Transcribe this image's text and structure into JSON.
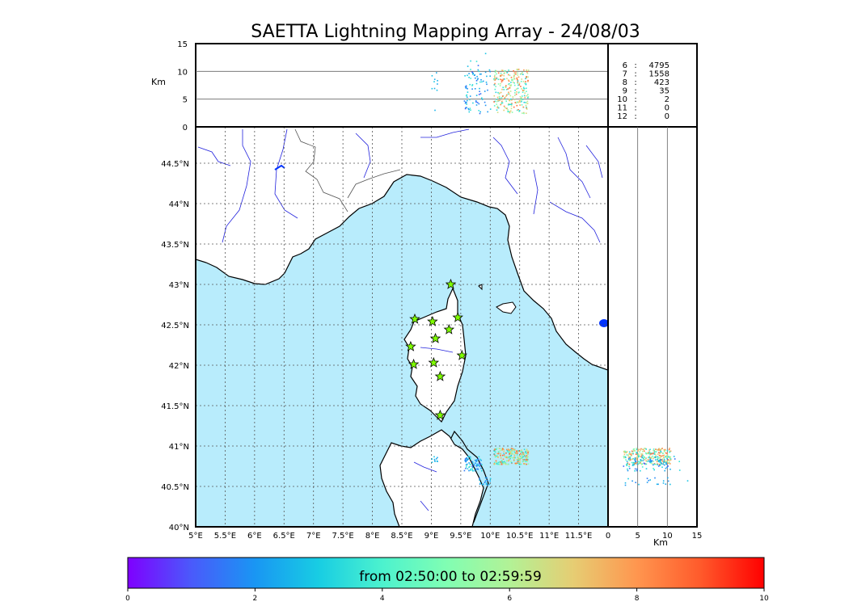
{
  "chart_data": {
    "type": "scatter",
    "title": "SAETTA Lightning Mapping Array - 24/08/03",
    "map": {
      "lon_range": [
        5,
        12.0
      ],
      "lat_range": [
        40,
        44.95
      ],
      "x_ticks": [
        "5°E",
        "5.5°E",
        "6°E",
        "6.5°E",
        "7°E",
        "7.5°E",
        "8°E",
        "8.5°E",
        "9°E",
        "9.5°E",
        "10°E",
        "10.5°E",
        "11°E",
        "11.5°E"
      ],
      "x_tick_values": [
        5,
        5.5,
        6,
        6.5,
        7,
        7.5,
        8,
        8.5,
        9,
        9.5,
        10,
        10.5,
        11,
        11.5
      ],
      "y_ticks": [
        "40°N",
        "40.5°N",
        "41°N",
        "41.5°N",
        "42°N",
        "42.5°N",
        "43°N",
        "43.5°N",
        "44°N",
        "44.5°N"
      ],
      "y_tick_values": [
        40,
        40.5,
        41,
        41.5,
        42,
        42.5,
        43,
        43.5,
        44,
        44.5
      ],
      "grid": true,
      "stations": [
        {
          "lon": 9.33,
          "lat": 43.0
        },
        {
          "lon": 8.72,
          "lat": 42.57
        },
        {
          "lon": 9.02,
          "lat": 42.54
        },
        {
          "lon": 9.45,
          "lat": 42.59
        },
        {
          "lon": 9.3,
          "lat": 42.44
        },
        {
          "lon": 9.07,
          "lat": 42.33
        },
        {
          "lon": 8.65,
          "lat": 42.23
        },
        {
          "lon": 9.52,
          "lat": 42.12
        },
        {
          "lon": 8.7,
          "lat": 42.01
        },
        {
          "lon": 9.04,
          "lat": 42.03
        },
        {
          "lon": 9.15,
          "lat": 41.86
        },
        {
          "lon": 9.15,
          "lat": 41.38
        }
      ],
      "clusters": [
        {
          "lon": [
            10.05,
            10.65
          ],
          "lat": [
            40.78,
            40.98
          ],
          "time_range": [
            3,
            9
          ],
          "density": 260
        },
        {
          "lon": [
            9.55,
            9.85
          ],
          "lat": [
            40.7,
            40.88
          ],
          "time_range": [
            1,
            4
          ],
          "density": 70
        },
        {
          "lon": [
            9.8,
            10.0
          ],
          "lat": [
            40.52,
            40.62
          ],
          "time_range": [
            1.5,
            3
          ],
          "density": 20
        },
        {
          "lon": [
            9.0,
            9.1
          ],
          "lat": [
            40.8,
            40.88
          ],
          "time_range": [
            2,
            3.5
          ],
          "density": 10
        }
      ]
    },
    "top_panel": {
      "ylabel": "Km",
      "y_ticks": [
        "0",
        "5",
        "10",
        "15"
      ],
      "y_tick_values": [
        0,
        5,
        10,
        15
      ],
      "ylim": [
        0,
        15
      ],
      "reference_lines": [
        5,
        10
      ]
    },
    "right_panel": {
      "xlabel": "Km",
      "x_ticks": [
        "0",
        "5",
        "10",
        "15"
      ],
      "x_tick_values": [
        0,
        5,
        10,
        15
      ],
      "xlim": [
        0,
        15
      ],
      "reference_lines": [
        5,
        10
      ]
    },
    "counts_table": [
      {
        "label": "6",
        "value": "4795",
        "highlight": false
      },
      {
        "label": "7",
        "value": "1558",
        "highlight": true
      },
      {
        "label": "8",
        "value": "423",
        "highlight": false
      },
      {
        "label": "9",
        "value": "35",
        "highlight": false
      },
      {
        "label": "10",
        "value": "2",
        "highlight": false
      },
      {
        "label": "11",
        "value": "0",
        "highlight": false
      },
      {
        "label": "12",
        "value": "0",
        "highlight": false
      }
    ],
    "colorbar": {
      "label": "from 02:50:00 to 02:59:59",
      "range": [
        0,
        10
      ],
      "ticks": [
        "0",
        "2",
        "4",
        "6",
        "8",
        "10"
      ],
      "tick_values": [
        0,
        2,
        4,
        6,
        8,
        10
      ],
      "colormap": [
        "#7f00ff",
        "#4a5afb",
        "#1996f3",
        "#18cde3",
        "#4cf2ce",
        "#80feb3",
        "#b2f296",
        "#e6cd73",
        "#ff964f",
        "#ff5a2b",
        "#ff0000"
      ]
    },
    "colors": {
      "sea": "#b8ecfc",
      "rivers": "#2222dd",
      "borders": "#555555",
      "station_fill": "#7fff00",
      "highlight": "#cc0000"
    }
  }
}
